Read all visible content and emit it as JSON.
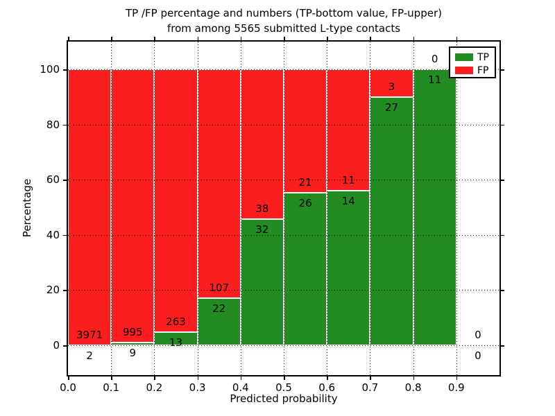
{
  "figure": {
    "title_line1": "TP /FP percentage and numbers (TP-bottom value, FP-upper)",
    "title_line2": "from among 5565 submitted L-type contacts",
    "xlabel": "Predicted probability",
    "ylabel": "Percentage"
  },
  "legend": {
    "items": [
      {
        "label": "TP",
        "color": "#228b22"
      },
      {
        "label": "FP",
        "color": "#fb1e1e"
      }
    ]
  },
  "chart_data": {
    "type": "bar",
    "stacked": true,
    "title": "TP /FP percentage and numbers (TP-bottom value, FP-upper) from among 5565 submitted L-type contacts",
    "xlabel": "Predicted probability",
    "ylabel": "Percentage",
    "total_contacts": 5565,
    "bar_width": 0.1,
    "xlim": [
      0.0,
      1.0
    ],
    "ylim": [
      -10.6,
      110.3
    ],
    "grid": true,
    "legend_position": "upper right",
    "x_tick_labels": [
      "0.0",
      "0.1",
      "0.2",
      "0.3",
      "0.4",
      "0.5",
      "0.6",
      "0.7",
      "0.8",
      "0.9"
    ],
    "y_tick_labels": [
      "0",
      "20",
      "40",
      "60",
      "80",
      "100"
    ],
    "y_tick_values": [
      0,
      20,
      40,
      60,
      80,
      100
    ],
    "categories": [
      "0.0-0.1",
      "0.1-0.2",
      "0.2-0.3",
      "0.3-0.4",
      "0.4-0.5",
      "0.5-0.6",
      "0.6-0.7",
      "0.7-0.8",
      "0.8-0.9",
      "0.9-1.0"
    ],
    "series": [
      {
        "name": "TP",
        "color": "#228b22",
        "counts": [
          2,
          9,
          13,
          22,
          32,
          26,
          14,
          27,
          11,
          0
        ]
      },
      {
        "name": "FP",
        "color": "#fb1e1e",
        "counts": [
          3971,
          995,
          263,
          107,
          38,
          21,
          11,
          3,
          0,
          0
        ]
      }
    ],
    "tp_percent": [
      0.05,
      0.9,
      4.71,
      17.05,
      45.71,
      55.32,
      56.0,
      90.0,
      100.0,
      0.0
    ],
    "fp_percent": [
      99.95,
      99.1,
      95.29,
      82.95,
      54.29,
      44.68,
      44.0,
      10.0,
      0.0,
      0.0
    ]
  }
}
